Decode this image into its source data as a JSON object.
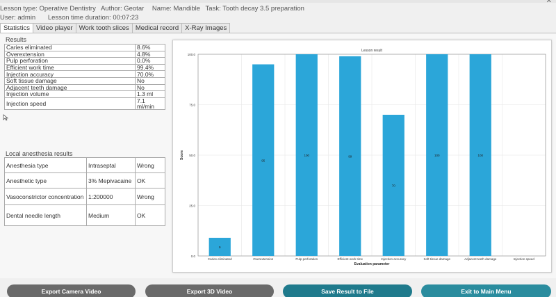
{
  "header": {
    "lesson_type": "Lesson type: Operative Dentistry",
    "author": "Author: Geotar",
    "name": "Name: Mandible",
    "task": "Task: Tooth decay 3.5 preparation",
    "user": "User: admin",
    "duration": "Lesson time duration: 00:07:23",
    "close_glyph": "✕"
  },
  "tabs": [
    "Statistics",
    "Video player",
    "Work tooth slices",
    "Medical record",
    "X-Ray Images"
  ],
  "results": {
    "title": "Results",
    "rows": [
      [
        "Caries eliminated",
        "8.6%"
      ],
      [
        "Overextension",
        "4.8%"
      ],
      [
        "Pulp perforation",
        "0.0%"
      ],
      [
        "Efficient work time",
        "99.4%"
      ],
      [
        "Injection accuracy",
        "70.0%"
      ],
      [
        "Soft tissue damage",
        "No"
      ],
      [
        "Adjacent teeth damage",
        "No"
      ],
      [
        "Injection volume",
        "1.3 ml"
      ],
      [
        "Injection speed",
        "7.1 ml/min"
      ]
    ]
  },
  "anesthesia": {
    "title": "Local anesthesia results",
    "rows": [
      [
        "Anesthesia type",
        "Intraseptal",
        "Wrong"
      ],
      [
        "Anesthetic type",
        "3% Mepivacaine",
        "OK"
      ],
      [
        "Vasoconstrictor concentration",
        "1:200000",
        "Wrong"
      ],
      [
        "Dental needle length",
        "Medium",
        "OK"
      ]
    ]
  },
  "buttons": {
    "export_camera": "Export Camera Video",
    "export_3d": "Export 3D Video",
    "save_result": "Save Result to File",
    "exit_main": "Exit to Main Menu"
  },
  "colors": {
    "bar": "#2ba6d9",
    "gray_button": "#6a6a6a",
    "teal_button": "#1f7a8c"
  },
  "chart_data": {
    "type": "bar",
    "title": "Lesson result",
    "xlabel": "Evaluation parameter",
    "ylabel": "Score",
    "ylim": [
      0,
      100
    ],
    "yticks": [
      "0.0",
      "25.0",
      "50.0",
      "75.0",
      "100.0"
    ],
    "categories": [
      "Caries eliminated",
      "Overextension",
      "Pulp perforation",
      "Efficient work time",
      "Injection accuracy",
      "Soft tissue damage",
      "Adjacent teeth damage",
      "Injection speed"
    ],
    "values": [
      9,
      95,
      100,
      99,
      70,
      100,
      100,
      0
    ],
    "labels": [
      "9",
      "95",
      "100",
      "99",
      "70",
      "100",
      "100",
      ""
    ],
    "grid": true
  }
}
